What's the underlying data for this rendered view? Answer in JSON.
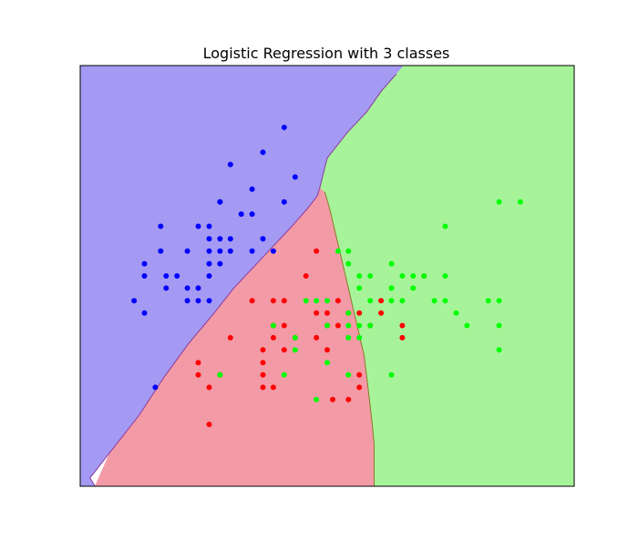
{
  "chart_data": {
    "type": "scatter",
    "title": "Logistic Regression with 3 classes",
    "xlabel": "",
    "ylabel": "",
    "xlim": [
      0,
      100
    ],
    "ylim": [
      0,
      100
    ],
    "grid": false,
    "ticks": "none",
    "decision_regions": [
      {
        "class": 0,
        "fill": "#a59af3",
        "polygon": [
          [
            0,
            0
          ],
          [
            0,
            100
          ],
          [
            65.5,
            100
          ],
          [
            64,
            98
          ],
          [
            61,
            94
          ],
          [
            58,
            89
          ],
          [
            54,
            84
          ],
          [
            50,
            78
          ],
          [
            48.5,
            71
          ],
          [
            48,
            69
          ],
          [
            46,
            66
          ],
          [
            43,
            62
          ],
          [
            39,
            57
          ],
          [
            35,
            52
          ],
          [
            31,
            47
          ],
          [
            27,
            41
          ],
          [
            22,
            34
          ],
          [
            17,
            26
          ],
          [
            12,
            17
          ],
          [
            6,
            8
          ],
          [
            2,
            2
          ],
          [
            3,
            0
          ]
        ]
      },
      {
        "class": 1,
        "fill": "#f39aa7",
        "polygon": [
          [
            3,
            0
          ],
          [
            6,
            8
          ],
          [
            12,
            17
          ],
          [
            17,
            26
          ],
          [
            22,
            34
          ],
          [
            27,
            41
          ],
          [
            31,
            47
          ],
          [
            35,
            52
          ],
          [
            39,
            57
          ],
          [
            43,
            62
          ],
          [
            46,
            66
          ],
          [
            48,
            69
          ],
          [
            48.5,
            71
          ],
          [
            49.5,
            70
          ],
          [
            50.5,
            66
          ],
          [
            51.5,
            61
          ],
          [
            52.5,
            56
          ],
          [
            53.5,
            51
          ],
          [
            54.5,
            46
          ],
          [
            55.5,
            41
          ],
          [
            56.5,
            36
          ],
          [
            57.5,
            31
          ],
          [
            58,
            26
          ],
          [
            58.5,
            21
          ],
          [
            59,
            16
          ],
          [
            59.5,
            10
          ],
          [
            59.5,
            4
          ],
          [
            59.5,
            0
          ]
        ]
      },
      {
        "class": 2,
        "fill": "#a7f39a",
        "polygon": [
          [
            65.5,
            100
          ],
          [
            100,
            100
          ],
          [
            100,
            0
          ],
          [
            59.5,
            0
          ],
          [
            59.5,
            4
          ],
          [
            59.5,
            10
          ],
          [
            59,
            16
          ],
          [
            58.5,
            21
          ],
          [
            58,
            26
          ],
          [
            57.5,
            31
          ],
          [
            56.5,
            36
          ],
          [
            55.5,
            41
          ],
          [
            54.5,
            46
          ],
          [
            53.5,
            51
          ],
          [
            52.5,
            56
          ],
          [
            51.5,
            61
          ],
          [
            50.5,
            66
          ],
          [
            49.5,
            70
          ],
          [
            48.5,
            71
          ],
          [
            50,
            78
          ],
          [
            54,
            84
          ],
          [
            58,
            89
          ],
          [
            61,
            94
          ],
          [
            64,
            98
          ]
        ]
      }
    ],
    "series": [
      {
        "class": 0,
        "color": "#0000ff",
        "points": [
          [
            41.3,
            85.3
          ],
          [
            37,
            79.4
          ],
          [
            43.5,
            73.5
          ],
          [
            30.4,
            76.5
          ],
          [
            34.8,
            70.6
          ],
          [
            28.3,
            67.6
          ],
          [
            41.3,
            67.6
          ],
          [
            16.3,
            61.8
          ],
          [
            23.9,
            61.8
          ],
          [
            26.1,
            61.8
          ],
          [
            32.6,
            64.7
          ],
          [
            34.8,
            64.7
          ],
          [
            26.1,
            58.8
          ],
          [
            28.3,
            58.8
          ],
          [
            30.4,
            58.8
          ],
          [
            37,
            58.8
          ],
          [
            16.3,
            55.9
          ],
          [
            21.7,
            55.9
          ],
          [
            26.1,
            55.9
          ],
          [
            28.3,
            55.9
          ],
          [
            30.4,
            55.9
          ],
          [
            34.8,
            55.9
          ],
          [
            13,
            52.9
          ],
          [
            26.1,
            52.9
          ],
          [
            28.3,
            52.9
          ],
          [
            13,
            50
          ],
          [
            17.4,
            50
          ],
          [
            19.6,
            50
          ],
          [
            26.1,
            50
          ],
          [
            17.4,
            47.1
          ],
          [
            21.7,
            47.1
          ],
          [
            23.9,
            47.1
          ],
          [
            10.9,
            44.1
          ],
          [
            21.7,
            44.1
          ],
          [
            23.9,
            44.1
          ],
          [
            26.1,
            44.1
          ],
          [
            13,
            41.2
          ],
          [
            15.2,
            23.5
          ],
          [
            28.3,
            67.6
          ],
          [
            39.1,
            55.9
          ]
        ]
      },
      {
        "class": 1,
        "color": "#ff0000",
        "points": [
          [
            47.8,
            55.9
          ],
          [
            45.7,
            50
          ],
          [
            69.6,
            50
          ],
          [
            34.8,
            44.1
          ],
          [
            39.1,
            44.1
          ],
          [
            41.3,
            44.1
          ],
          [
            52.2,
            44.1
          ],
          [
            60.9,
            44.1
          ],
          [
            47.8,
            41.2
          ],
          [
            50,
            41.2
          ],
          [
            54.3,
            41.2
          ],
          [
            56.5,
            41.2
          ],
          [
            60.9,
            41.2
          ],
          [
            39.1,
            38.2
          ],
          [
            41.3,
            38.2
          ],
          [
            50,
            38.2
          ],
          [
            52.2,
            38.2
          ],
          [
            58.7,
            38.2
          ],
          [
            65.2,
            38.2
          ],
          [
            39.1,
            35.3
          ],
          [
            43.5,
            35.3
          ],
          [
            47.8,
            35.3
          ],
          [
            30.4,
            35.3
          ],
          [
            37,
            32.4
          ],
          [
            41.3,
            32.4
          ],
          [
            50,
            32.4
          ],
          [
            23.9,
            29.4
          ],
          [
            37,
            29.4
          ],
          [
            28.3,
            26.5
          ],
          [
            23.9,
            26.5
          ],
          [
            37,
            26.5
          ],
          [
            26.1,
            23.5
          ],
          [
            37,
            23.5
          ],
          [
            51.1,
            20.6
          ],
          [
            54.3,
            20.6
          ],
          [
            26.1,
            14.7
          ],
          [
            65.2,
            35.3
          ],
          [
            56.5,
            26.5
          ],
          [
            56.5,
            23.5
          ],
          [
            39.1,
            23.5
          ]
        ]
      },
      {
        "class": 2,
        "color": "#00ff00",
        "points": [
          [
            84.8,
            67.6
          ],
          [
            89.1,
            67.6
          ],
          [
            73.9,
            61.8
          ],
          [
            52.2,
            55.9
          ],
          [
            54.3,
            55.9
          ],
          [
            54.3,
            52.9
          ],
          [
            63,
            52.9
          ],
          [
            56.5,
            50
          ],
          [
            58.7,
            50
          ],
          [
            65.2,
            50
          ],
          [
            67.4,
            50
          ],
          [
            69.6,
            50
          ],
          [
            73.9,
            50
          ],
          [
            56.5,
            47.1
          ],
          [
            63,
            47.1
          ],
          [
            67.4,
            47.1
          ],
          [
            45.7,
            44.1
          ],
          [
            47.8,
            44.1
          ],
          [
            50,
            44.1
          ],
          [
            58.7,
            44.1
          ],
          [
            63,
            44.1
          ],
          [
            65.2,
            44.1
          ],
          [
            71.7,
            44.1
          ],
          [
            73.9,
            44.1
          ],
          [
            82.6,
            44.1
          ],
          [
            84.8,
            44.1
          ],
          [
            54.3,
            41.2
          ],
          [
            76.1,
            41.2
          ],
          [
            39.1,
            38.2
          ],
          [
            50,
            38.2
          ],
          [
            54.3,
            38.2
          ],
          [
            56.5,
            38.2
          ],
          [
            58.7,
            38.2
          ],
          [
            78.3,
            38.2
          ],
          [
            84.8,
            38.2
          ],
          [
            43.5,
            35.3
          ],
          [
            54.3,
            35.3
          ],
          [
            56.5,
            35.3
          ],
          [
            43.5,
            32.4
          ],
          [
            84.8,
            32.4
          ],
          [
            50,
            29.4
          ],
          [
            28.3,
            26.5
          ],
          [
            41.3,
            26.5
          ],
          [
            54.3,
            26.5
          ],
          [
            63,
            26.5
          ],
          [
            47.8,
            20.6
          ],
          [
            63,
            47.1
          ]
        ]
      }
    ]
  }
}
